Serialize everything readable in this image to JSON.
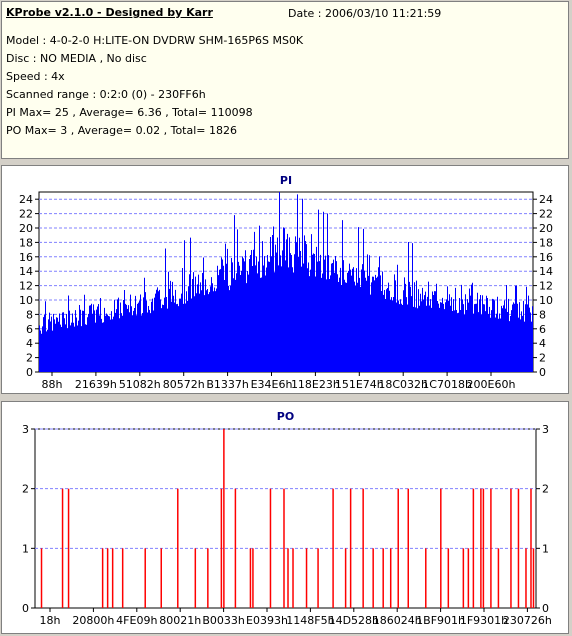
{
  "header": {
    "title": "KProbe v2.1.0 - Designed by Karr",
    "date": "Date : 2006/03/10 11:21:59",
    "lines": [
      "Model : 4-0-2-0 H:LITE-ON DVDRW SHM-165P6S MS0K",
      "Disc : NO MEDIA , No disc",
      "Speed : 4x",
      "Scanned range : 0:2:0 (0) - 230FF6h",
      "PI Max= 25 , Average= 6.36 , Total= 110098",
      "PO Max= 3 , Average= 0.02 , Total= 1826"
    ]
  },
  "colors": {
    "pi": "#0000ff",
    "po": "#ff0000",
    "grid": "#8080ff",
    "title": "#000080"
  },
  "chart_data": [
    {
      "type": "bar",
      "title": "PI",
      "ylim": [
        0,
        25
      ],
      "yticks": [
        0,
        2,
        4,
        6,
        8,
        10,
        12,
        14,
        16,
        18,
        20,
        22,
        24
      ],
      "xtick_labels": [
        "88h",
        "21639h",
        "51082h",
        "80572h",
        "B1337h",
        "E34E6h",
        "118E23h",
        "151E74h",
        "18C032h",
        "1C7018h",
        "200E60h"
      ],
      "envelope": {
        "x_fraction": [
          0,
          0.05,
          0.15,
          0.25,
          0.35,
          0.45,
          0.5,
          0.55,
          0.65,
          0.75,
          0.85,
          0.95,
          1
        ],
        "base": [
          5,
          6,
          7,
          8.5,
          10.5,
          13,
          14,
          13,
          11,
          9,
          8,
          7,
          7
        ],
        "peak": [
          10,
          10.5,
          12.5,
          15,
          18,
          22,
          24,
          21,
          18,
          16,
          14,
          13,
          12
        ]
      },
      "max": 25,
      "average": 6.36,
      "grid": true
    },
    {
      "type": "bar",
      "title": "PO",
      "ylim": [
        0,
        3
      ],
      "yticks": [
        0,
        1,
        2,
        3
      ],
      "xtick_labels": [
        "18h",
        "20800h",
        "4FE09h",
        "80021h",
        "B0033h",
        "E0393h",
        "1148F5h",
        "14D528h",
        "186024h",
        "1BF901h",
        "1F9301h",
        "230726h"
      ],
      "spikes": [
        {
          "x": 0.013,
          "v": 1
        },
        {
          "x": 0.055,
          "v": 2
        },
        {
          "x": 0.067,
          "v": 2
        },
        {
          "x": 0.135,
          "v": 1
        },
        {
          "x": 0.145,
          "v": 1
        },
        {
          "x": 0.155,
          "v": 1
        },
        {
          "x": 0.175,
          "v": 1
        },
        {
          "x": 0.22,
          "v": 1
        },
        {
          "x": 0.252,
          "v": 1
        },
        {
          "x": 0.285,
          "v": 2
        },
        {
          "x": 0.32,
          "v": 1
        },
        {
          "x": 0.345,
          "v": 1
        },
        {
          "x": 0.372,
          "v": 2
        },
        {
          "x": 0.4,
          "v": 2
        },
        {
          "x": 0.43,
          "v": 1
        },
        {
          "x": 0.435,
          "v": 1
        },
        {
          "x": 0.47,
          "v": 2
        },
        {
          "x": 0.497,
          "v": 2
        },
        {
          "x": 0.505,
          "v": 1
        },
        {
          "x": 0.515,
          "v": 1
        },
        {
          "x": 0.542,
          "v": 1
        },
        {
          "x": 0.565,
          "v": 1
        },
        {
          "x": 0.595,
          "v": 2
        },
        {
          "x": 0.62,
          "v": 1
        },
        {
          "x": 0.63,
          "v": 2
        },
        {
          "x": 0.655,
          "v": 2
        },
        {
          "x": 0.675,
          "v": 1
        },
        {
          "x": 0.695,
          "v": 1
        },
        {
          "x": 0.71,
          "v": 1
        },
        {
          "x": 0.725,
          "v": 2
        },
        {
          "x": 0.745,
          "v": 2
        },
        {
          "x": 0.78,
          "v": 1
        },
        {
          "x": 0.81,
          "v": 2
        },
        {
          "x": 0.825,
          "v": 1
        },
        {
          "x": 0.855,
          "v": 1
        },
        {
          "x": 0.865,
          "v": 1
        },
        {
          "x": 0.875,
          "v": 2
        },
        {
          "x": 0.89,
          "v": 2
        },
        {
          "x": 0.895,
          "v": 2
        },
        {
          "x": 0.91,
          "v": 2
        },
        {
          "x": 0.925,
          "v": 1
        },
        {
          "x": 0.95,
          "v": 2
        },
        {
          "x": 0.965,
          "v": 2
        },
        {
          "x": 0.98,
          "v": 1
        },
        {
          "x": 0.99,
          "v": 2
        },
        {
          "x": 0.995,
          "v": 1
        }
      ],
      "max": 3,
      "average": 0.02,
      "grid": true
    }
  ]
}
